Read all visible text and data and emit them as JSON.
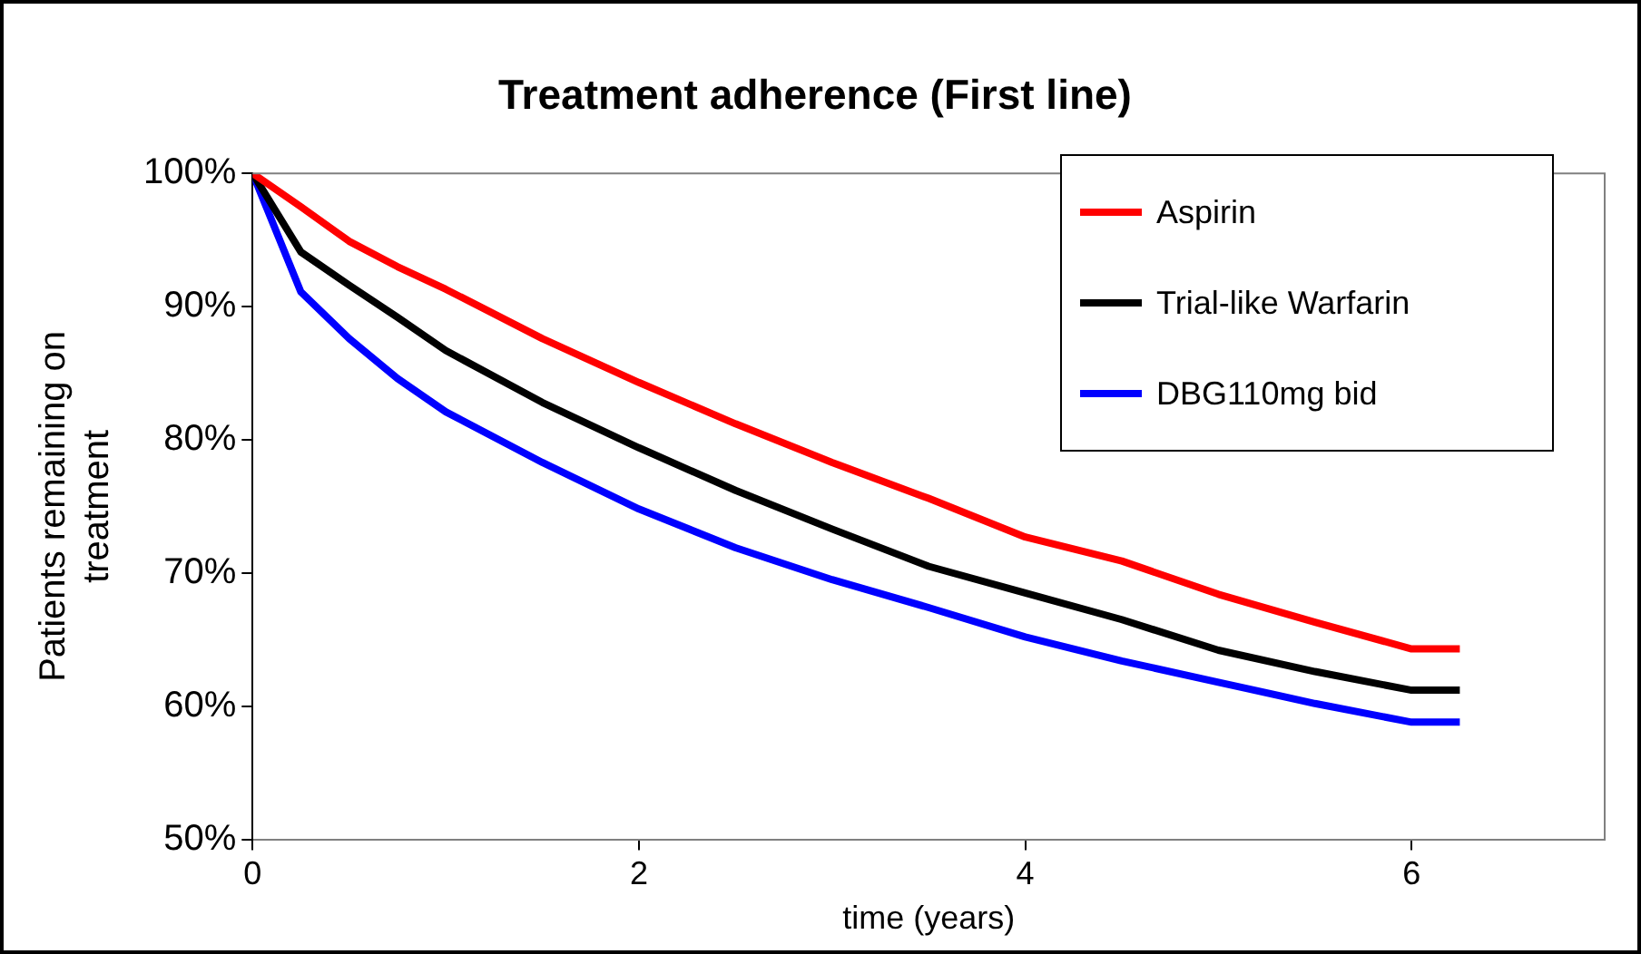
{
  "chart_data": {
    "type": "line",
    "title": "Treatment adherence (First line)",
    "xlabel": "time (years)",
    "ylabel": "Patients remaining on treatment",
    "x": [
      0,
      0.25,
      0.5,
      0.75,
      1,
      1.5,
      2,
      2.5,
      3,
      3.5,
      4,
      4.5,
      5,
      5.5,
      6,
      6.25
    ],
    "series": [
      {
        "name": "Aspirin",
        "color": "#ff0000",
        "values": [
          100,
          97.5,
          94.9,
          93,
          91.3,
          87.6,
          84.3,
          81.2,
          78.3,
          75.6,
          72.7,
          70.9,
          68.4,
          66.3,
          64.3,
          64.3
        ]
      },
      {
        "name": "Trial-like Warfarin",
        "color": "#000000",
        "values": [
          100,
          94.1,
          91.6,
          89.2,
          86.7,
          82.8,
          79.4,
          76.2,
          73.3,
          70.5,
          68.5,
          66.5,
          64.2,
          62.6,
          61.2,
          61.2
        ]
      },
      {
        "name": "DBG110mg bid",
        "color": "#0000ff",
        "values": [
          100,
          91.1,
          87.6,
          84.6,
          82.1,
          78.3,
          74.8,
          71.9,
          69.5,
          67.4,
          65.2,
          63.4,
          61.8,
          60.2,
          58.8,
          58.8
        ]
      }
    ],
    "xlim": [
      0,
      7
    ],
    "xticks": [
      0,
      2,
      4,
      6
    ],
    "ylim": [
      50,
      100
    ],
    "yticks": [
      {
        "value": 50,
        "label": "50%"
      },
      {
        "value": 60,
        "label": "60%"
      },
      {
        "value": 70,
        "label": "70%"
      },
      {
        "value": 80,
        "label": "80%"
      },
      {
        "value": 90,
        "label": "90%"
      },
      {
        "value": 100,
        "label": "100%"
      }
    ],
    "grid": false,
    "legend": "top right",
    "marker": "none",
    "line_style": "solid"
  }
}
